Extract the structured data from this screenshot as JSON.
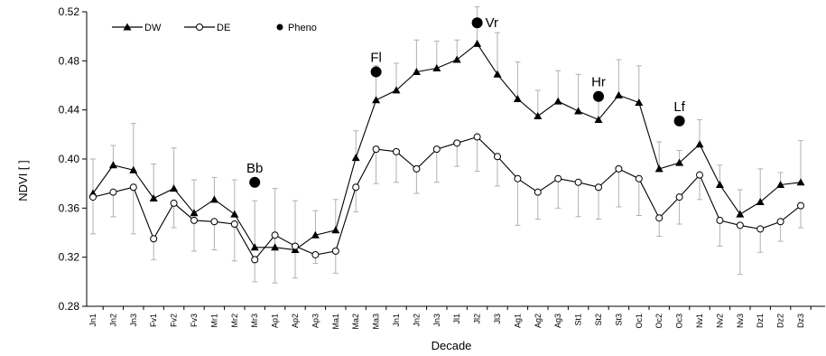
{
  "chart_data": {
    "type": "line",
    "xlabel": "Decade",
    "ylabel": "NDVI [ ]",
    "ylim": [
      0.28,
      0.52
    ],
    "yticks": [
      "0.28",
      "0.32",
      "0.36",
      "0.40",
      "0.44",
      "0.48",
      "0.52"
    ],
    "ytick_values": [
      0.28,
      0.32,
      0.36,
      0.4,
      0.44,
      0.48,
      0.52
    ],
    "grid": false,
    "legend_position": "top-left",
    "categories": [
      "Jn1",
      "Jn2",
      "Jn3",
      "Fv1",
      "Fv2",
      "Fv3",
      "Mr1",
      "Mr2",
      "Mr3",
      "Ap1",
      "Ap2",
      "Ap3",
      "Ma1",
      "Ma2",
      "Ma3",
      "Jn1",
      "Jn2",
      "Jn3",
      "Jl1",
      "Jl2",
      "Jl3",
      "Ag1",
      "Ag2",
      "Ag3",
      "St1",
      "St2",
      "St3",
      "Oc1",
      "Oc2",
      "Oc3",
      "Nv1",
      "Nv2",
      "Nv3",
      "Dz1",
      "Dz2",
      "Dz3"
    ],
    "series": [
      {
        "name": "DW",
        "marker": "triangle",
        "color": "#000000",
        "values": [
          0.372,
          0.395,
          0.391,
          0.368,
          0.376,
          0.356,
          0.367,
          0.355,
          0.328,
          0.328,
          0.326,
          0.338,
          0.342,
          0.401,
          0.448,
          0.456,
          0.471,
          0.474,
          0.481,
          0.494,
          0.469,
          0.449,
          0.435,
          0.447,
          0.439,
          0.432,
          0.452,
          0.446,
          0.392,
          0.397,
          0.412,
          0.379,
          0.355,
          0.365,
          0.379,
          0.381
        ],
        "error": [
          0.028,
          0.016,
          0.038,
          0.028,
          0.033,
          0.027,
          0.018,
          0.028,
          0.038,
          0.048,
          0.04,
          0.02,
          0.025,
          0.022,
          0.028,
          0.022,
          0.026,
          0.022,
          0.016,
          0.03,
          0.034,
          0.03,
          0.021,
          0.025,
          0.03,
          0.023,
          0.029,
          0.03,
          0.022,
          0.01,
          0.02,
          0.016,
          0.02,
          0.027,
          0.01,
          0.034
        ]
      },
      {
        "name": "DE",
        "marker": "open-circle",
        "color": "#000000",
        "values": [
          0.369,
          0.373,
          0.377,
          0.335,
          0.364,
          0.35,
          0.349,
          0.347,
          0.318,
          0.338,
          0.329,
          0.322,
          0.325,
          0.377,
          0.408,
          0.406,
          0.392,
          0.408,
          0.413,
          0.418,
          0.402,
          0.384,
          0.373,
          0.384,
          0.381,
          0.377,
          0.392,
          0.384,
          0.352,
          0.369,
          0.387,
          0.35,
          0.346,
          0.343,
          0.349,
          0.362
        ],
        "error": [
          0.03,
          0.02,
          0.038,
          0.017,
          0.02,
          0.025,
          0.023,
          0.03,
          0.018,
          0.039,
          0.026,
          0.007,
          0.018,
          0.02,
          0.028,
          0.025,
          0.02,
          0.027,
          0.019,
          0.028,
          0.024,
          0.038,
          0.022,
          0.024,
          0.028,
          0.026,
          0.031,
          0.03,
          0.015,
          0.022,
          0.02,
          0.021,
          0.04,
          0.019,
          0.016,
          0.018
        ]
      }
    ],
    "pheno": {
      "name": "Pheno",
      "points": [
        {
          "label": "Bb",
          "index": 8,
          "value": 0.381
        },
        {
          "label": "Fl",
          "index": 14,
          "value": 0.471
        },
        {
          "label": "Vr",
          "index": 19,
          "value": 0.511
        },
        {
          "label": "Hr",
          "index": 25,
          "value": 0.451
        },
        {
          "label": "Lf",
          "index": 29,
          "value": 0.431
        }
      ]
    }
  }
}
